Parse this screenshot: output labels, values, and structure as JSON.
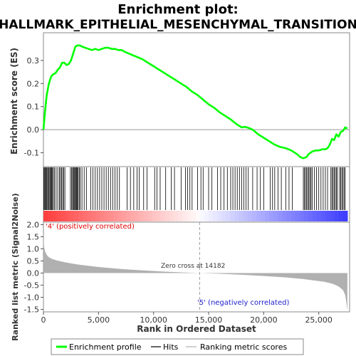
{
  "chart_data": {
    "type": "line",
    "title": "Enrichment plot:\nHALLMARK_EPITHELIAL_MESENCHYMAL_TRANSITION",
    "title_lines": [
      "Enrichment plot:",
      "HALLMARK_EPITHELIAL_MESENCHYMAL_TRANSITION"
    ],
    "xlabel": "Rank in Ordered Dataset",
    "xlim": [
      0,
      27800
    ],
    "x_ticks": [
      0,
      5000,
      10000,
      15000,
      20000,
      25000
    ],
    "x_tick_labels": [
      "0",
      "5,000",
      "10,000",
      "15,000",
      "20,000",
      "25,000"
    ],
    "enrichment_panel": {
      "ylabel": "Enrichment score (ES)",
      "ylim": [
        -0.16,
        0.42
      ],
      "y_ticks": [
        -0.1,
        0.0,
        0.1,
        0.2,
        0.3
      ],
      "y_tick_labels": [
        "-0.1",
        "0.0",
        "0.1",
        "0.2",
        "0.3"
      ],
      "series": [
        {
          "name": "Enrichment profile",
          "color": "#00ff00",
          "x": [
            0,
            150,
            300,
            500,
            700,
            900,
            1100,
            1300,
            1500,
            1700,
            1900,
            2100,
            2300,
            2500,
            2700,
            2900,
            3100,
            3300,
            3500,
            3800,
            4100,
            4400,
            4700,
            5000,
            5300,
            5600,
            5900,
            6200,
            6500,
            6800,
            7100,
            7500,
            8000,
            8500,
            9000,
            9500,
            10000,
            10500,
            11000,
            11500,
            12000,
            12500,
            13000,
            13500,
            14000,
            14500,
            15000,
            15500,
            16000,
            16500,
            17000,
            17500,
            18000,
            18300,
            18600,
            19000,
            19500,
            20000,
            20500,
            21000,
            21500,
            22000,
            22500,
            23000,
            23300,
            23600,
            23900,
            24100,
            24400,
            24700,
            25000,
            25300,
            25600,
            25800,
            26000,
            26200,
            26400,
            26600,
            26800,
            27000,
            27200,
            27400,
            27600
          ],
          "y": [
            0.0,
            0.08,
            0.15,
            0.2,
            0.23,
            0.24,
            0.245,
            0.26,
            0.27,
            0.29,
            0.29,
            0.28,
            0.285,
            0.3,
            0.33,
            0.36,
            0.365,
            0.365,
            0.36,
            0.355,
            0.35,
            0.345,
            0.35,
            0.345,
            0.35,
            0.355,
            0.355,
            0.35,
            0.35,
            0.345,
            0.345,
            0.335,
            0.325,
            0.315,
            0.305,
            0.29,
            0.275,
            0.26,
            0.245,
            0.23,
            0.215,
            0.2,
            0.185,
            0.165,
            0.15,
            0.13,
            0.11,
            0.095,
            0.075,
            0.06,
            0.045,
            0.025,
            0.01,
            0.012,
            0.008,
            0.0,
            -0.02,
            -0.035,
            -0.05,
            -0.065,
            -0.075,
            -0.08,
            -0.09,
            -0.105,
            -0.118,
            -0.124,
            -0.118,
            -0.105,
            -0.095,
            -0.09,
            -0.09,
            -0.085,
            -0.085,
            -0.08,
            -0.065,
            -0.04,
            -0.045,
            -0.02,
            -0.03,
            -0.01,
            -0.005,
            0.01,
            0.005
          ]
        }
      ]
    },
    "hits_panel": {
      "legend_label": "Hits",
      "hit_positions": [
        30,
        80,
        150,
        220,
        300,
        380,
        450,
        520,
        600,
        680,
        750,
        820,
        900,
        1000,
        1150,
        1300,
        1450,
        1550,
        1650,
        1750,
        1850,
        1950,
        2450,
        2550,
        2650,
        2720,
        2790,
        2860,
        2930,
        3000,
        3070,
        3150,
        3250,
        3350,
        3500,
        3700,
        3900,
        4300,
        4500,
        4700,
        4900,
        5100,
        5300,
        5500,
        5700,
        5900,
        6100,
        6300,
        6500,
        6700,
        6900,
        7600,
        7900,
        8200,
        8500,
        8700,
        9100,
        9400,
        10100,
        10300,
        10600,
        11100,
        11600,
        11900,
        12500,
        12900,
        13100,
        13300,
        13500,
        14000,
        14300,
        14500,
        15000,
        15300,
        15800,
        16100,
        16400,
        16700,
        17000,
        17200,
        17400,
        17600,
        17800,
        18000,
        18200,
        18400,
        18600,
        19000,
        19400,
        19700,
        20000,
        20600,
        20800,
        21000,
        21300,
        21600,
        22000,
        22300,
        22600,
        23600,
        23700,
        23800,
        23900,
        24000,
        24100,
        24200,
        24300,
        24400,
        24600,
        24800,
        25000,
        25200,
        25400,
        25600,
        25800,
        26100,
        26200,
        26300,
        26400,
        26500,
        26600,
        26700,
        26900,
        27000,
        27100,
        27200,
        27300,
        27400
      ]
    },
    "heatmap_bar": {
      "colors_positive": "#ff0000",
      "colors_negative": "#0000ff"
    },
    "ranked_metric_panel": {
      "ylabel": "Ranked list metric (Signal2Noise)",
      "ylim": [
        -1.6,
        2.1
      ],
      "y_ticks": [
        -1.5,
        -1.0,
        -0.5,
        0.0,
        0.5,
        1.0,
        1.5,
        2.0
      ],
      "y_tick_labels": [
        "-1.5",
        "-1.0",
        "-0.5",
        "0.0",
        "0.5",
        "1.0",
        "1.5",
        "2.0"
      ],
      "metric_x": [
        0,
        50,
        150,
        300,
        500,
        800,
        1200,
        2000,
        3000,
        5000,
        7000,
        9000,
        11000,
        13000,
        14182,
        16000,
        18000,
        20000,
        22000,
        23500,
        24500,
        25500,
        26300,
        26800,
        27200,
        27400,
        27500,
        27600
      ],
      "metric_y": [
        1.5,
        1.1,
        0.9,
        0.75,
        0.65,
        0.58,
        0.52,
        0.44,
        0.36,
        0.25,
        0.17,
        0.11,
        0.06,
        0.02,
        0.0,
        -0.03,
        -0.07,
        -0.12,
        -0.18,
        -0.24,
        -0.3,
        -0.36,
        -0.45,
        -0.55,
        -0.7,
        -0.9,
        -1.2,
        -1.55
      ],
      "fill_color": "#b0b0b0",
      "zero_cross_label": "Zero cross at 14182",
      "zero_cross_rank": 14182,
      "positive_label": "'4' (positively correlated)",
      "negative_label": "'5' (negatively correlated)",
      "positive_label_color": "#e00000",
      "negative_label_color": "#2020d0"
    },
    "legend": {
      "placement": "bottom",
      "items": [
        {
          "label": "Enrichment profile",
          "color": "#00ff00",
          "kind": "line-thick"
        },
        {
          "label": "Hits",
          "color": "#000000",
          "kind": "line-thin"
        },
        {
          "label": "Ranking metric scores",
          "color": "#b0b0b0",
          "kind": "line-thin"
        }
      ]
    }
  }
}
